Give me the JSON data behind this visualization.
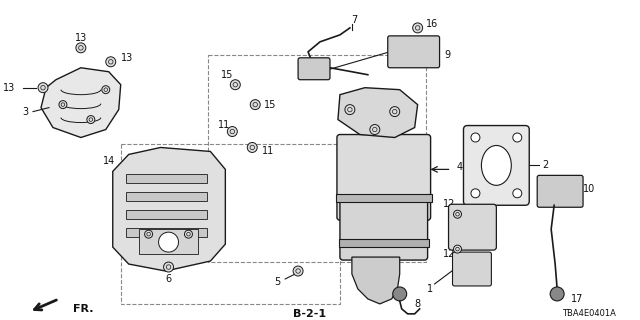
{
  "bg_color": "#ffffff",
  "line_color": "#1a1a1a",
  "dash_color": "#888888",
  "label_color": "#111111",
  "footer_left": "FR.",
  "footer_center": "B-2-1",
  "footer_right": "TBA4E0401A",
  "figsize": [
    6.4,
    3.2
  ],
  "dpi": 100
}
